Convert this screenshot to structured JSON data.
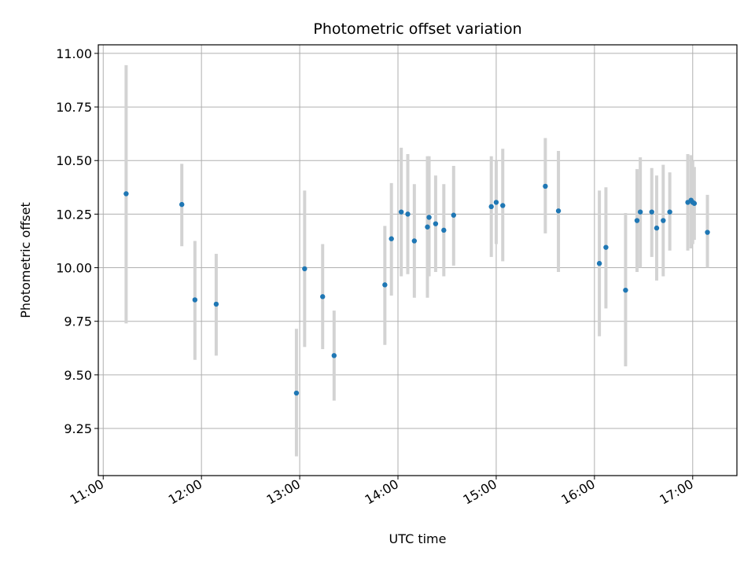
{
  "chart_data": {
    "type": "scatter",
    "title": "Photometric offset variation",
    "xlabel": "UTC time",
    "ylabel": "Photometric offset",
    "x_ticks": [
      "11:00",
      "12:00",
      "13:00",
      "14:00",
      "15:00",
      "16:00",
      "17:00"
    ],
    "y_ticks": [
      "9.25",
      "9.50",
      "9.75",
      "10.00",
      "10.25",
      "10.50",
      "10.75",
      "11.00"
    ],
    "xlim": [
      "10:57",
      "17:27"
    ],
    "ylim": [
      9.03,
      11.04
    ],
    "grid": true,
    "point_color": "#1f77b4",
    "errorbar_color": "#d3d3d3",
    "points": [
      {
        "x": "11:14",
        "y": 10.345,
        "ylow": 9.74,
        "yhigh": 10.945
      },
      {
        "x": "11:48",
        "y": 10.295,
        "ylow": 10.1,
        "yhigh": 10.485
      },
      {
        "x": "11:56",
        "y": 9.85,
        "ylow": 9.57,
        "yhigh": 10.125
      },
      {
        "x": "12:09",
        "y": 9.83,
        "ylow": 9.59,
        "yhigh": 10.065
      },
      {
        "x": "12:58",
        "y": 9.415,
        "ylow": 9.12,
        "yhigh": 9.715
      },
      {
        "x": "13:03",
        "y": 9.995,
        "ylow": 9.63,
        "yhigh": 10.36
      },
      {
        "x": "13:14",
        "y": 9.865,
        "ylow": 9.62,
        "yhigh": 10.11
      },
      {
        "x": "13:21",
        "y": 9.59,
        "ylow": 9.38,
        "yhigh": 9.8
      },
      {
        "x": "13:52",
        "y": 9.92,
        "ylow": 9.64,
        "yhigh": 10.195
      },
      {
        "x": "13:56",
        "y": 10.135,
        "ylow": 9.87,
        "yhigh": 10.395
      },
      {
        "x": "14:02",
        "y": 10.26,
        "ylow": 9.96,
        "yhigh": 10.56
      },
      {
        "x": "14:06",
        "y": 10.25,
        "ylow": 9.97,
        "yhigh": 10.53
      },
      {
        "x": "14:10",
        "y": 10.125,
        "ylow": 9.86,
        "yhigh": 10.39
      },
      {
        "x": "14:18",
        "y": 10.19,
        "ylow": 9.86,
        "yhigh": 10.52
      },
      {
        "x": "14:19",
        "y": 10.235,
        "ylow": 9.96,
        "yhigh": 10.52
      },
      {
        "x": "14:23",
        "y": 10.205,
        "ylow": 9.98,
        "yhigh": 10.43
      },
      {
        "x": "14:28",
        "y": 10.175,
        "ylow": 9.96,
        "yhigh": 10.39
      },
      {
        "x": "14:34",
        "y": 10.245,
        "ylow": 10.01,
        "yhigh": 10.475
      },
      {
        "x": "14:57",
        "y": 10.285,
        "ylow": 10.05,
        "yhigh": 10.52
      },
      {
        "x": "15:00",
        "y": 10.305,
        "ylow": 10.11,
        "yhigh": 10.5
      },
      {
        "x": "15:04",
        "y": 10.29,
        "ylow": 10.03,
        "yhigh": 10.555
      },
      {
        "x": "15:30",
        "y": 10.38,
        "ylow": 10.16,
        "yhigh": 10.605
      },
      {
        "x": "15:38",
        "y": 10.265,
        "ylow": 9.98,
        "yhigh": 10.545
      },
      {
        "x": "16:03",
        "y": 10.02,
        "ylow": 9.68,
        "yhigh": 10.36
      },
      {
        "x": "16:07",
        "y": 10.095,
        "ylow": 9.81,
        "yhigh": 10.375
      },
      {
        "x": "16:19",
        "y": 9.895,
        "ylow": 9.54,
        "yhigh": 10.255
      },
      {
        "x": "16:26",
        "y": 10.22,
        "ylow": 9.98,
        "yhigh": 10.46
      },
      {
        "x": "16:28",
        "y": 10.26,
        "ylow": 10.0,
        "yhigh": 10.515
      },
      {
        "x": "16:35",
        "y": 10.26,
        "ylow": 10.05,
        "yhigh": 10.465
      },
      {
        "x": "16:38",
        "y": 10.185,
        "ylow": 9.94,
        "yhigh": 10.43
      },
      {
        "x": "16:42",
        "y": 10.22,
        "ylow": 9.96,
        "yhigh": 10.48
      },
      {
        "x": "16:46",
        "y": 10.26,
        "ylow": 10.08,
        "yhigh": 10.445
      },
      {
        "x": "16:57",
        "y": 10.305,
        "ylow": 10.08,
        "yhigh": 10.53
      },
      {
        "x": "16:59",
        "y": 10.315,
        "ylow": 10.09,
        "yhigh": 10.525
      },
      {
        "x": "17:00",
        "y": 10.305,
        "ylow": 10.11,
        "yhigh": 10.5
      },
      {
        "x": "17:01",
        "y": 10.3,
        "ylow": 10.13,
        "yhigh": 10.47
      },
      {
        "x": "17:09",
        "y": 10.165,
        "ylow": 10.0,
        "yhigh": 10.34
      }
    ]
  }
}
